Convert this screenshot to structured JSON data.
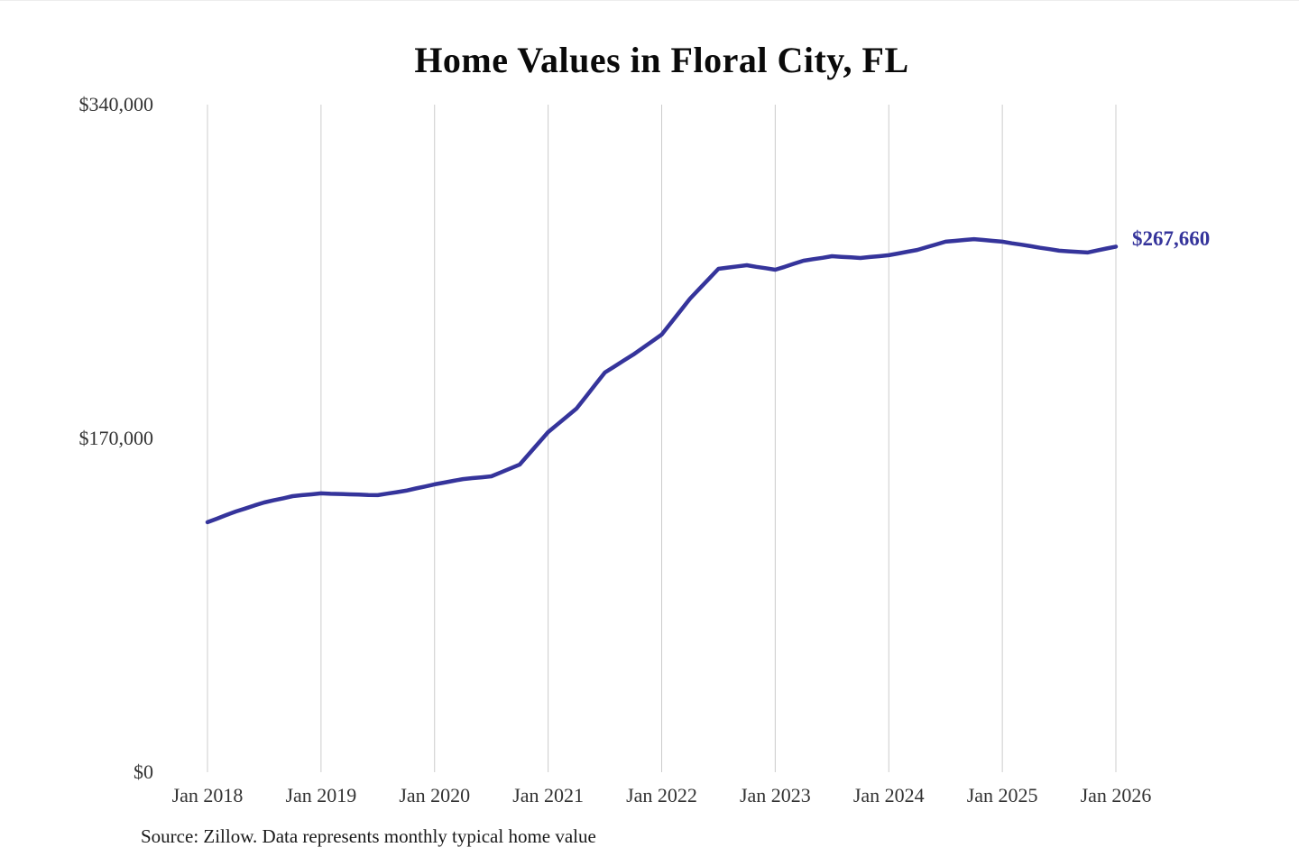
{
  "page": {
    "source_note": "Source: Zillow. Data represents monthly typical home value"
  },
  "chart_data": {
    "type": "line",
    "title": "Home Values in Floral City, FL",
    "xlabel": "",
    "ylabel": "",
    "ylim": [
      0,
      340000
    ],
    "x_start": "2018-01",
    "x_step_months": 1,
    "x_count": 97,
    "grid": "vertical",
    "legend": "none",
    "end_label": "$267,660",
    "y_ticks": [
      {
        "value": 0,
        "label": "$0"
      },
      {
        "value": 170000,
        "label": "$170,000"
      },
      {
        "value": 340000,
        "label": "$340,000"
      }
    ],
    "x_ticks": [
      {
        "index": 0,
        "label": "Jan 2018"
      },
      {
        "index": 12,
        "label": "Jan 2019"
      },
      {
        "index": 24,
        "label": "Jan 2020"
      },
      {
        "index": 36,
        "label": "Jan 2021"
      },
      {
        "index": 48,
        "label": "Jan 2022"
      },
      {
        "index": 60,
        "label": "Jan 2023"
      },
      {
        "index": 72,
        "label": "Jan 2024"
      },
      {
        "index": 84,
        "label": "Jan 2025"
      },
      {
        "index": 96,
        "label": "Jan 2026"
      }
    ],
    "series": [
      {
        "name": "Typical home value",
        "values": [
          127300,
          129100,
          131000,
          132800,
          134300,
          135900,
          137400,
          138500,
          139500,
          140600,
          141100,
          141500,
          142000,
          141800,
          141700,
          141500,
          141400,
          141200,
          141100,
          141900,
          142600,
          143400,
          144500,
          145500,
          146600,
          147500,
          148400,
          149300,
          149800,
          150200,
          150700,
          152700,
          154700,
          156700,
          162200,
          167700,
          173200,
          177200,
          181200,
          185200,
          191300,
          197500,
          203600,
          206600,
          209700,
          212700,
          216100,
          219500,
          222900,
          229000,
          235100,
          241200,
          246300,
          251300,
          256400,
          257000,
          257600,
          258200,
          257400,
          256700,
          255900,
          257400,
          259000,
          260500,
          261300,
          262000,
          262800,
          262500,
          262200,
          261900,
          262400,
          262800,
          263300,
          264200,
          265100,
          266000,
          267400,
          268800,
          270200,
          270600,
          271100,
          271500,
          271100,
          270600,
          270200,
          269400,
          268700,
          267900,
          267100,
          266400,
          265600,
          265300,
          265000,
          264700,
          265700,
          266700,
          267660
        ]
      }
    ],
    "colors": {
      "line": "#35349B",
      "end_label": "#35349B",
      "gridline": "#CCCCCC",
      "tick_text": "#333333",
      "title_text": "#0A0A0A",
      "source_text": "#1A1A1A"
    }
  }
}
